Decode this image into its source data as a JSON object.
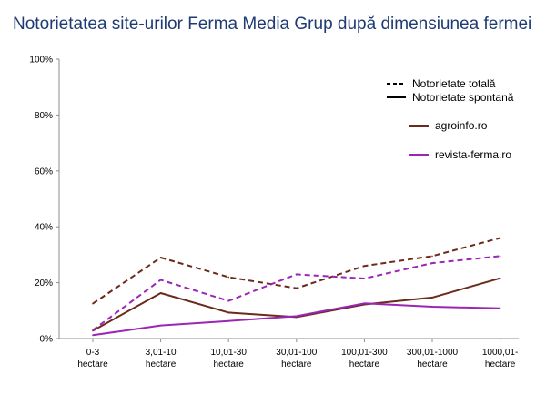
{
  "chart_data": {
    "type": "line",
    "title": "Notorietatea site-urilor Ferma Media Grup după dimensiunea fermei",
    "categories": [
      [
        "0-3",
        "hectare"
      ],
      [
        "3,01-10",
        "hectare"
      ],
      [
        "10,01-30",
        "hectare"
      ],
      [
        "30,01-100",
        "hectare"
      ],
      [
        "100,01-300",
        "hectare"
      ],
      [
        "300,01-1000",
        "hectare"
      ],
      [
        "1000,01-",
        "hectare"
      ]
    ],
    "y_ticks": [
      "0%",
      "20%",
      "40%",
      "60%",
      "80%",
      "100%"
    ],
    "ylim": [
      0,
      100
    ],
    "grid": false,
    "legend_position": "top-right",
    "style_legend": [
      {
        "label": "Notorietate totală",
        "dash": "dashed"
      },
      {
        "label": "Notorietate spontană",
        "dash": "solid"
      }
    ],
    "series": [
      {
        "name": "agroinfo.ro",
        "measure": "Notorietate totală",
        "color": "#6b2a1a",
        "dash": "dashed",
        "values": [
          12.5,
          29,
          22,
          18,
          26,
          29.5,
          36
        ]
      },
      {
        "name": "agroinfo.ro",
        "measure": "Notorietate spontană",
        "color": "#6b2a1a",
        "dash": "solid",
        "values": [
          2.8,
          16.3,
          9.3,
          7.7,
          12.2,
          14.7,
          21.6
        ]
      },
      {
        "name": "revista-ferma.ro",
        "measure": "Notorietate totală",
        "color": "#9b26b6",
        "dash": "dashed",
        "values": [
          3,
          21,
          13.5,
          23,
          21.5,
          27,
          29.5
        ]
      },
      {
        "name": "revista-ferma.ro",
        "measure": "Notorietate spontană",
        "color": "#9b26b6",
        "dash": "solid",
        "values": [
          1.2,
          4.7,
          6.3,
          8,
          12.6,
          11.4,
          10.8
        ]
      }
    ],
    "color_legend": [
      {
        "label": "agroinfo.ro",
        "color": "#6b2a1a"
      },
      {
        "label": "revista-ferma.ro",
        "color": "#9b26b6"
      }
    ]
  }
}
